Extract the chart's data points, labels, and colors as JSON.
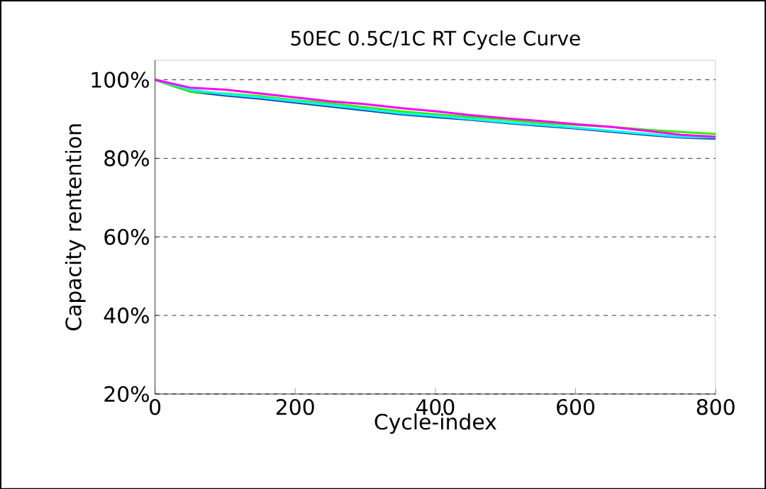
{
  "chart_data": {
    "type": "line",
    "title": "50EC 0.5C/1C RT Cycle Curve",
    "xlabel": "Cycle-index",
    "ylabel": "Capacity rentention",
    "x": [
      0,
      50,
      100,
      150,
      200,
      250,
      300,
      350,
      400,
      450,
      500,
      550,
      600,
      650,
      700,
      750,
      800
    ],
    "series": [
      {
        "color": "#1f3fa8",
        "values": [
          100,
          97,
          96,
          95.2,
          94.2,
          93.2,
          92.2,
          91.2,
          90.5,
          89.8,
          89,
          88.3,
          87.6,
          86.8,
          86,
          85.3,
          85
        ]
      },
      {
        "color": "#33ee00",
        "values": [
          100,
          97,
          96.5,
          95.8,
          94.8,
          94,
          93,
          92,
          91.2,
          90.5,
          89.8,
          89,
          88.5,
          88,
          87.3,
          86.7,
          86.2
        ]
      },
      {
        "color": "#00ffff",
        "values": [
          100,
          97.5,
          96.3,
          95.5,
          94.5,
          93.5,
          92.5,
          91.5,
          90.8,
          90,
          89.2,
          88.5,
          87.8,
          87,
          86.2,
          85.5,
          85.3
        ]
      },
      {
        "color": "#ff00ff",
        "values": [
          100,
          98,
          97.5,
          96.5,
          95.5,
          94.5,
          93.8,
          92.8,
          92,
          91,
          90.2,
          89.5,
          88.7,
          88,
          87,
          86,
          85.5
        ]
      }
    ],
    "xlim": [
      0,
      800
    ],
    "xticks": [
      0,
      200,
      400,
      600,
      800
    ],
    "ylim": [
      20,
      105
    ],
    "yticks": [
      {
        "value": 20,
        "label": "20%"
      },
      {
        "value": 40,
        "label": "40%"
      },
      {
        "value": 60,
        "label": "60%"
      },
      {
        "value": 80,
        "label": "80%"
      },
      {
        "value": 100,
        "label": "100%"
      }
    ],
    "grid": "y",
    "line_style": "solid"
  }
}
